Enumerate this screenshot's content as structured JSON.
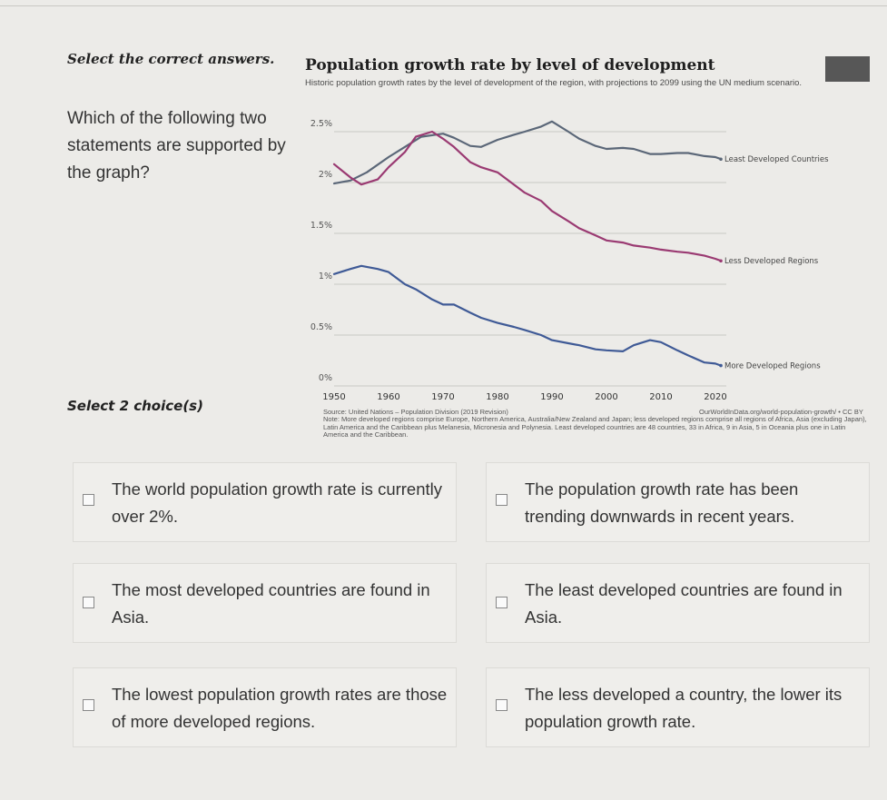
{
  "prompt": {
    "title": "Select the correct answers.",
    "question": "Which of the following two statements are supported by the graph?",
    "select_count": "Select 2 choice(s)"
  },
  "chart_data": {
    "type": "line",
    "title": "Population growth rate by level of development",
    "subtitle": "Historic population growth rates by the level of development of the region, with projections to 2099 using the UN medium scenario.",
    "x_ticks": [
      "1950",
      "1960",
      "1970",
      "1980",
      "1990",
      "2000",
      "2010",
      "2020"
    ],
    "y_ticks": [
      "0%",
      "0.5%",
      "1%",
      "1.5%",
      "2%",
      "2.5%"
    ],
    "xlim": [
      1950,
      2022
    ],
    "ylim": [
      0,
      2.5
    ],
    "grid": true,
    "series": [
      {
        "name": "Least Developed Countries",
        "color": "#5b6778",
        "x": [
          1950,
          1953,
          1956,
          1960,
          1963,
          1966,
          1970,
          1972,
          1975,
          1977,
          1980,
          1983,
          1985,
          1988,
          1990,
          1993,
          1995,
          1998,
          2000,
          2003,
          2005,
          2008,
          2010,
          2013,
          2015,
          2018,
          2020,
          2021
        ],
        "y": [
          1.99,
          2.02,
          2.1,
          2.25,
          2.35,
          2.45,
          2.48,
          2.44,
          2.36,
          2.35,
          2.42,
          2.47,
          2.5,
          2.55,
          2.6,
          2.5,
          2.43,
          2.36,
          2.33,
          2.34,
          2.33,
          2.28,
          2.28,
          2.29,
          2.29,
          2.26,
          2.25,
          2.23
        ]
      },
      {
        "name": "Less Developed Regions",
        "color": "#9a3a72",
        "x": [
          1950,
          1953,
          1955,
          1958,
          1960,
          1963,
          1965,
          1968,
          1970,
          1972,
          1975,
          1977,
          1980,
          1983,
          1985,
          1988,
          1990,
          1993,
          1995,
          1998,
          2000,
          2003,
          2005,
          2008,
          2010,
          2013,
          2015,
          2018,
          2020,
          2021
        ],
        "y": [
          2.18,
          2.05,
          1.98,
          2.03,
          2.15,
          2.3,
          2.45,
          2.5,
          2.43,
          2.35,
          2.2,
          2.15,
          2.1,
          1.98,
          1.9,
          1.82,
          1.72,
          1.62,
          1.55,
          1.48,
          1.43,
          1.41,
          1.38,
          1.36,
          1.34,
          1.32,
          1.31,
          1.28,
          1.25,
          1.23
        ]
      },
      {
        "name": "More Developed Regions",
        "color": "#3f5a96",
        "x": [
          1950,
          1953,
          1955,
          1958,
          1960,
          1963,
          1965,
          1968,
          1970,
          1972,
          1975,
          1977,
          1980,
          1983,
          1985,
          1988,
          1990,
          1993,
          1995,
          1998,
          2000,
          2003,
          2005,
          2008,
          2010,
          2013,
          2015,
          2018,
          2020,
          2021
        ],
        "y": [
          1.1,
          1.15,
          1.18,
          1.15,
          1.12,
          1.0,
          0.95,
          0.85,
          0.8,
          0.8,
          0.72,
          0.67,
          0.62,
          0.58,
          0.55,
          0.5,
          0.45,
          0.42,
          0.4,
          0.36,
          0.35,
          0.34,
          0.4,
          0.45,
          0.43,
          0.35,
          0.3,
          0.23,
          0.22,
          0.2
        ]
      }
    ]
  },
  "chart_meta": {
    "source": "Source: United Nations – Population Division (2019 Revision)",
    "link": "OurWorldInData.org/world-population-growth/ • CC BY",
    "note": "Note: More developed regions comprise Europe, Northern America, Australia/New Zealand and Japan; less developed regions comprise all regions of Africa, Asia (excluding Japan), Latin America and the Caribbean plus Melanesia, Micronesia and Polynesia. Least developed countries are 48 countries, 33 in Africa, 9 in Asia, 5 in Oceania plus one in Latin America and the Caribbean."
  },
  "choices": [
    {
      "text": "The world population growth rate is currently over 2%.",
      "checked": false
    },
    {
      "text": "The population growth rate has been trending downwards in recent years.",
      "checked": false
    },
    {
      "text": "The most developed countries are found in Asia.",
      "checked": false
    },
    {
      "text": "The least developed countries are found in Asia.",
      "checked": false
    },
    {
      "text": "The lowest population growth rates are those of more developed regions.",
      "checked": false
    },
    {
      "text": "The less developed a country, the lower its population growth rate.",
      "checked": false
    }
  ]
}
